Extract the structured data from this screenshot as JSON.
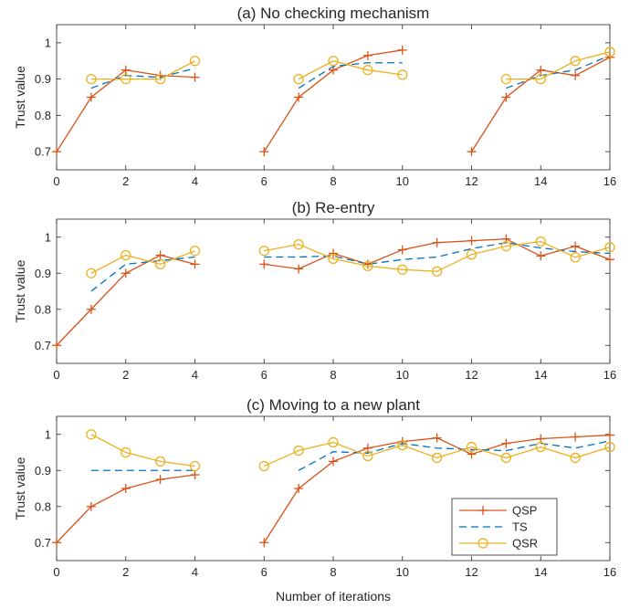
{
  "colors": {
    "QSP": "#d95319",
    "TS": "#0072bd",
    "QSR": "#edb120"
  },
  "legend": {
    "entries": [
      "QSP",
      "TS",
      "QSR"
    ],
    "placement": "bottom-right of panel (c)"
  },
  "xlabel": "Number of iterations",
  "chart_data": [
    {
      "type": "line",
      "title": "(a) No checking mechanism",
      "ylabel": "Trust value",
      "xlim": [
        0,
        16
      ],
      "ylim": [
        0.65,
        1.05
      ],
      "xticks": [
        0,
        2,
        4,
        6,
        8,
        10,
        12,
        14,
        16
      ],
      "yticks": [
        0.7,
        0.8,
        0.9,
        1
      ],
      "series": [
        {
          "name": "QSP",
          "segments": [
            {
              "x": [
                0,
                1,
                2,
                3,
                4
              ],
              "y": [
                0.7,
                0.85,
                0.925,
                0.91,
                0.905
              ]
            },
            {
              "x": [
                6,
                7,
                8,
                9,
                10
              ],
              "y": [
                0.7,
                0.85,
                0.925,
                0.965,
                0.98
              ]
            },
            {
              "x": [
                12,
                13,
                14,
                15,
                16
              ],
              "y": [
                0.7,
                0.85,
                0.925,
                0.91,
                0.96
              ]
            }
          ]
        },
        {
          "name": "TS",
          "segments": [
            {
              "x": [
                1,
                2,
                3,
                4
              ],
              "y": [
                0.875,
                0.91,
                0.905,
                0.93
              ]
            },
            {
              "x": [
                7,
                8,
                9,
                10
              ],
              "y": [
                0.875,
                0.935,
                0.945,
                0.945
              ]
            },
            {
              "x": [
                13,
                14,
                15,
                16
              ],
              "y": [
                0.875,
                0.91,
                0.925,
                0.965
              ]
            }
          ]
        },
        {
          "name": "QSR",
          "segments": [
            {
              "x": [
                1,
                2,
                3,
                4
              ],
              "y": [
                0.9,
                0.9,
                0.9,
                0.95
              ]
            },
            {
              "x": [
                7,
                8,
                9,
                10
              ],
              "y": [
                0.9,
                0.95,
                0.925,
                0.912
              ]
            },
            {
              "x": [
                13,
                14,
                15,
                16
              ],
              "y": [
                0.9,
                0.9,
                0.95,
                0.975
              ]
            }
          ]
        }
      ]
    },
    {
      "type": "line",
      "title": "(b) Re-entry",
      "ylabel": "Trust value",
      "xlim": [
        0,
        16
      ],
      "ylim": [
        0.65,
        1.05
      ],
      "xticks": [
        0,
        2,
        4,
        6,
        8,
        10,
        12,
        14,
        16
      ],
      "yticks": [
        0.7,
        0.8,
        0.9,
        1
      ],
      "series": [
        {
          "name": "QSP",
          "segments": [
            {
              "x": [
                0,
                1,
                2,
                3,
                4
              ],
              "y": [
                0.7,
                0.8,
                0.9,
                0.95,
                0.925
              ]
            },
            {
              "x": [
                6,
                7,
                8,
                9,
                10,
                11,
                12,
                13,
                14,
                15,
                16
              ],
              "y": [
                0.925,
                0.912,
                0.955,
                0.925,
                0.965,
                0.985,
                0.99,
                0.995,
                0.948,
                0.975,
                0.938
              ]
            }
          ]
        },
        {
          "name": "TS",
          "segments": [
            {
              "x": [
                1,
                2,
                3,
                4
              ],
              "y": [
                0.85,
                0.925,
                0.935,
                0.945
              ]
            },
            {
              "x": [
                6,
                7,
                8,
                9,
                10,
                11,
                12,
                13,
                14,
                15,
                16
              ],
              "y": [
                0.945,
                0.945,
                0.948,
                0.925,
                0.938,
                0.945,
                0.968,
                0.985,
                0.97,
                0.96,
                0.955
              ]
            }
          ]
        },
        {
          "name": "QSR",
          "segments": [
            {
              "x": [
                1,
                2,
                3,
                4
              ],
              "y": [
                0.9,
                0.95,
                0.925,
                0.962
              ]
            },
            {
              "x": [
                6,
                7,
                8,
                9,
                10,
                11,
                12,
                13,
                14,
                15,
                16
              ],
              "y": [
                0.962,
                0.98,
                0.94,
                0.92,
                0.91,
                0.905,
                0.952,
                0.975,
                0.988,
                0.944,
                0.972
              ]
            }
          ]
        }
      ]
    },
    {
      "type": "line",
      "title": "(c) Moving to a new plant",
      "ylabel": "Trust value",
      "xlim": [
        0,
        16
      ],
      "ylim": [
        0.65,
        1.05
      ],
      "xticks": [
        0,
        2,
        4,
        6,
        8,
        10,
        12,
        14,
        16
      ],
      "yticks": [
        0.7,
        0.8,
        0.9,
        1
      ],
      "series": [
        {
          "name": "QSP",
          "segments": [
            {
              "x": [
                0,
                1,
                2,
                3,
                4
              ],
              "y": [
                0.7,
                0.8,
                0.85,
                0.875,
                0.888
              ]
            },
            {
              "x": [
                6,
                7,
                8,
                9,
                10,
                11,
                12,
                13,
                14,
                15,
                16
              ],
              "y": [
                0.7,
                0.85,
                0.925,
                0.962,
                0.98,
                0.99,
                0.945,
                0.975,
                0.988,
                0.993,
                0.998
              ]
            }
          ]
        },
        {
          "name": "TS",
          "segments": [
            {
              "x": [
                1,
                2,
                3,
                4
              ],
              "y": [
                0.9,
                0.9,
                0.9,
                0.9
              ]
            },
            {
              "x": [
                7,
                8,
                9,
                10,
                11,
                12,
                13,
                14,
                15,
                16
              ],
              "y": [
                0.9,
                0.952,
                0.948,
                0.975,
                0.962,
                0.958,
                0.955,
                0.975,
                0.962,
                0.982
              ]
            }
          ]
        },
        {
          "name": "QSR",
          "segments": [
            {
              "x": [
                1,
                2,
                3,
                4
              ],
              "y": [
                1.0,
                0.95,
                0.925,
                0.912
              ]
            },
            {
              "x": [
                6,
                7,
                8,
                9,
                10,
                11,
                12,
                13,
                14,
                15,
                16
              ],
              "y": [
                0.912,
                0.955,
                0.978,
                0.94,
                0.97,
                0.935,
                0.965,
                0.935,
                0.965,
                0.935,
                0.965
              ]
            }
          ]
        }
      ]
    }
  ]
}
